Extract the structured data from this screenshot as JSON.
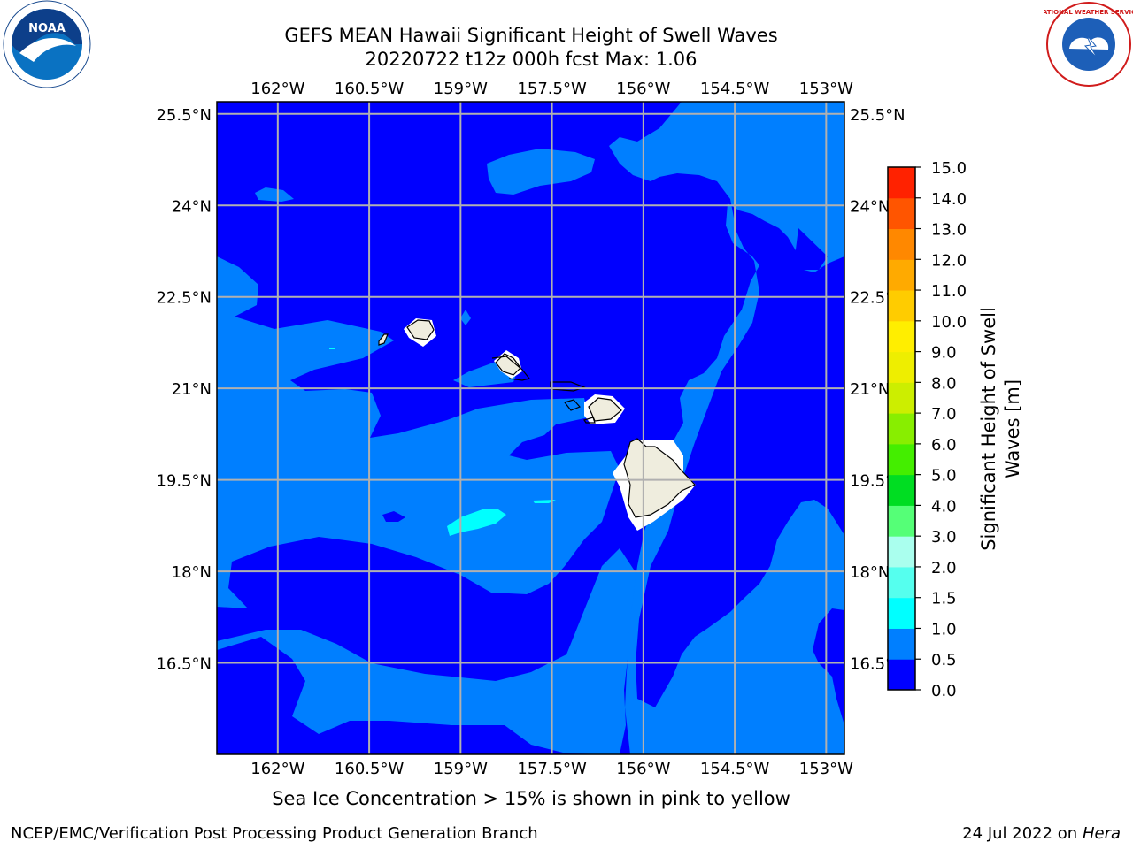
{
  "header": {
    "title_line1": "GEFS MEAN Hawaii Significant Height of Swell Waves",
    "title_line2": "20220722 t12z 000h fcst   Max: 1.06"
  },
  "map": {
    "lon_labels": [
      "162°W",
      "160.5°W",
      "159°W",
      "157.5°W",
      "156°W",
      "154.5°W",
      "153°W"
    ],
    "lat_labels": [
      "25.5°N",
      "24°N",
      "22.5°N",
      "21°N",
      "19.5°N",
      "18°N",
      "16.5°N"
    ],
    "lon_range": [
      -163.0,
      -152.7
    ],
    "lat_range": [
      15.0,
      25.7
    ],
    "colors": {
      "ocean_0_0_5": "#0000ff",
      "ocean_0_5_1_0": "#007fff",
      "ocean_1_0_1_5": "#00ffff",
      "land": "#efedde",
      "mask": "#ffffff",
      "grid": "#b0b0b0"
    }
  },
  "colorbar": {
    "label_line1": "Significant Height of Swell",
    "label_line2": "Waves [m]",
    "ticks": [
      "0.0",
      "0.5",
      "1.0",
      "1.5",
      "2.0",
      "3.0",
      "4.0",
      "5.0",
      "6.0",
      "7.0",
      "8.0",
      "9.0",
      "10.0",
      "11.0",
      "12.0",
      "13.0",
      "14.0",
      "15.0"
    ],
    "colors": [
      "#0000ff",
      "#007fff",
      "#00ffff",
      "#55ffee",
      "#aaffee",
      "#55ff77",
      "#00dd22",
      "#44ee00",
      "#88ee00",
      "#ccee00",
      "#eeee00",
      "#ffee00",
      "#ffcc00",
      "#ffaa00",
      "#ff8800",
      "#ff5500",
      "#ff2200"
    ]
  },
  "note": "Sea Ice Concentration > 15% is shown in pink to yellow",
  "footer": {
    "left": "NCEP/EMC/Verification Post Processing Product Generation Branch",
    "right_date": "24 Jul 2022 on ",
    "right_host": "Hera"
  },
  "logos": {
    "noaa_text": "NOAA",
    "nws_text": "NATIONAL WEATHER SERVICE"
  }
}
